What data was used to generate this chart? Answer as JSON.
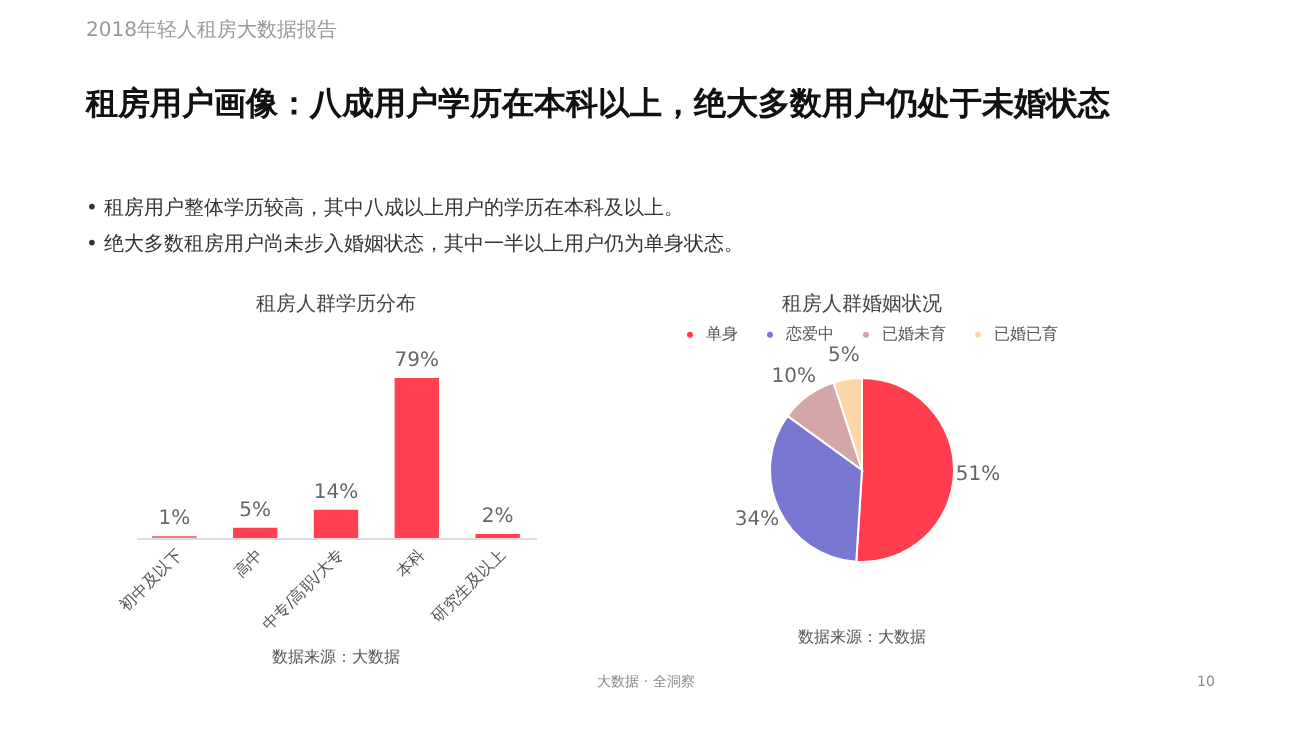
{
  "chart_data": [
    {
      "type": "bar",
      "title": "租房人群学历分布",
      "categories": [
        "初中及以下",
        "高中",
        "中专/高职/大专",
        "本科",
        "研究生及以上"
      ],
      "values": [
        1,
        5,
        14,
        79,
        2
      ],
      "colors": [
        "#f07c84",
        "#ff4050",
        "#ff4050",
        "#ff4050",
        "#ff4050"
      ],
      "value_labels": [
        "1%",
        "5%",
        "14%",
        "79%",
        "2%"
      ],
      "annotations": [
        "2018年轻人租房大数据报告",
        "租房用户画像：八成用户学历在本科以上，绝大多数用户仍处于未婚状态",
        "•  租房用户整体学历较高，其中八成以上用户的学历在本科及以上。",
        "•  绝大多数租房用户尚未步入婚姻状态，其中一半以上用户仍为单身状态。",
        "数据来源：大数据"
      ]
    },
    {
      "type": "pie",
      "title": "租房人群婚姻状况",
      "categories": [
        "单身",
        "恋爱中",
        "已婚未育",
        "已婚已育"
      ],
      "values": [
        51,
        34,
        10,
        5
      ],
      "colors": [
        "#ff3d4d",
        "#7878d2",
        "#d4a6a6",
        "#fcd6a8"
      ],
      "value_labels": [
        "51%",
        "34%",
        "10%",
        "5%"
      ],
      "legend": "top",
      "annotations": [
        "数据来源：大数据",
        "大数据 · 全洞察",
        "10"
      ]
    }
  ]
}
